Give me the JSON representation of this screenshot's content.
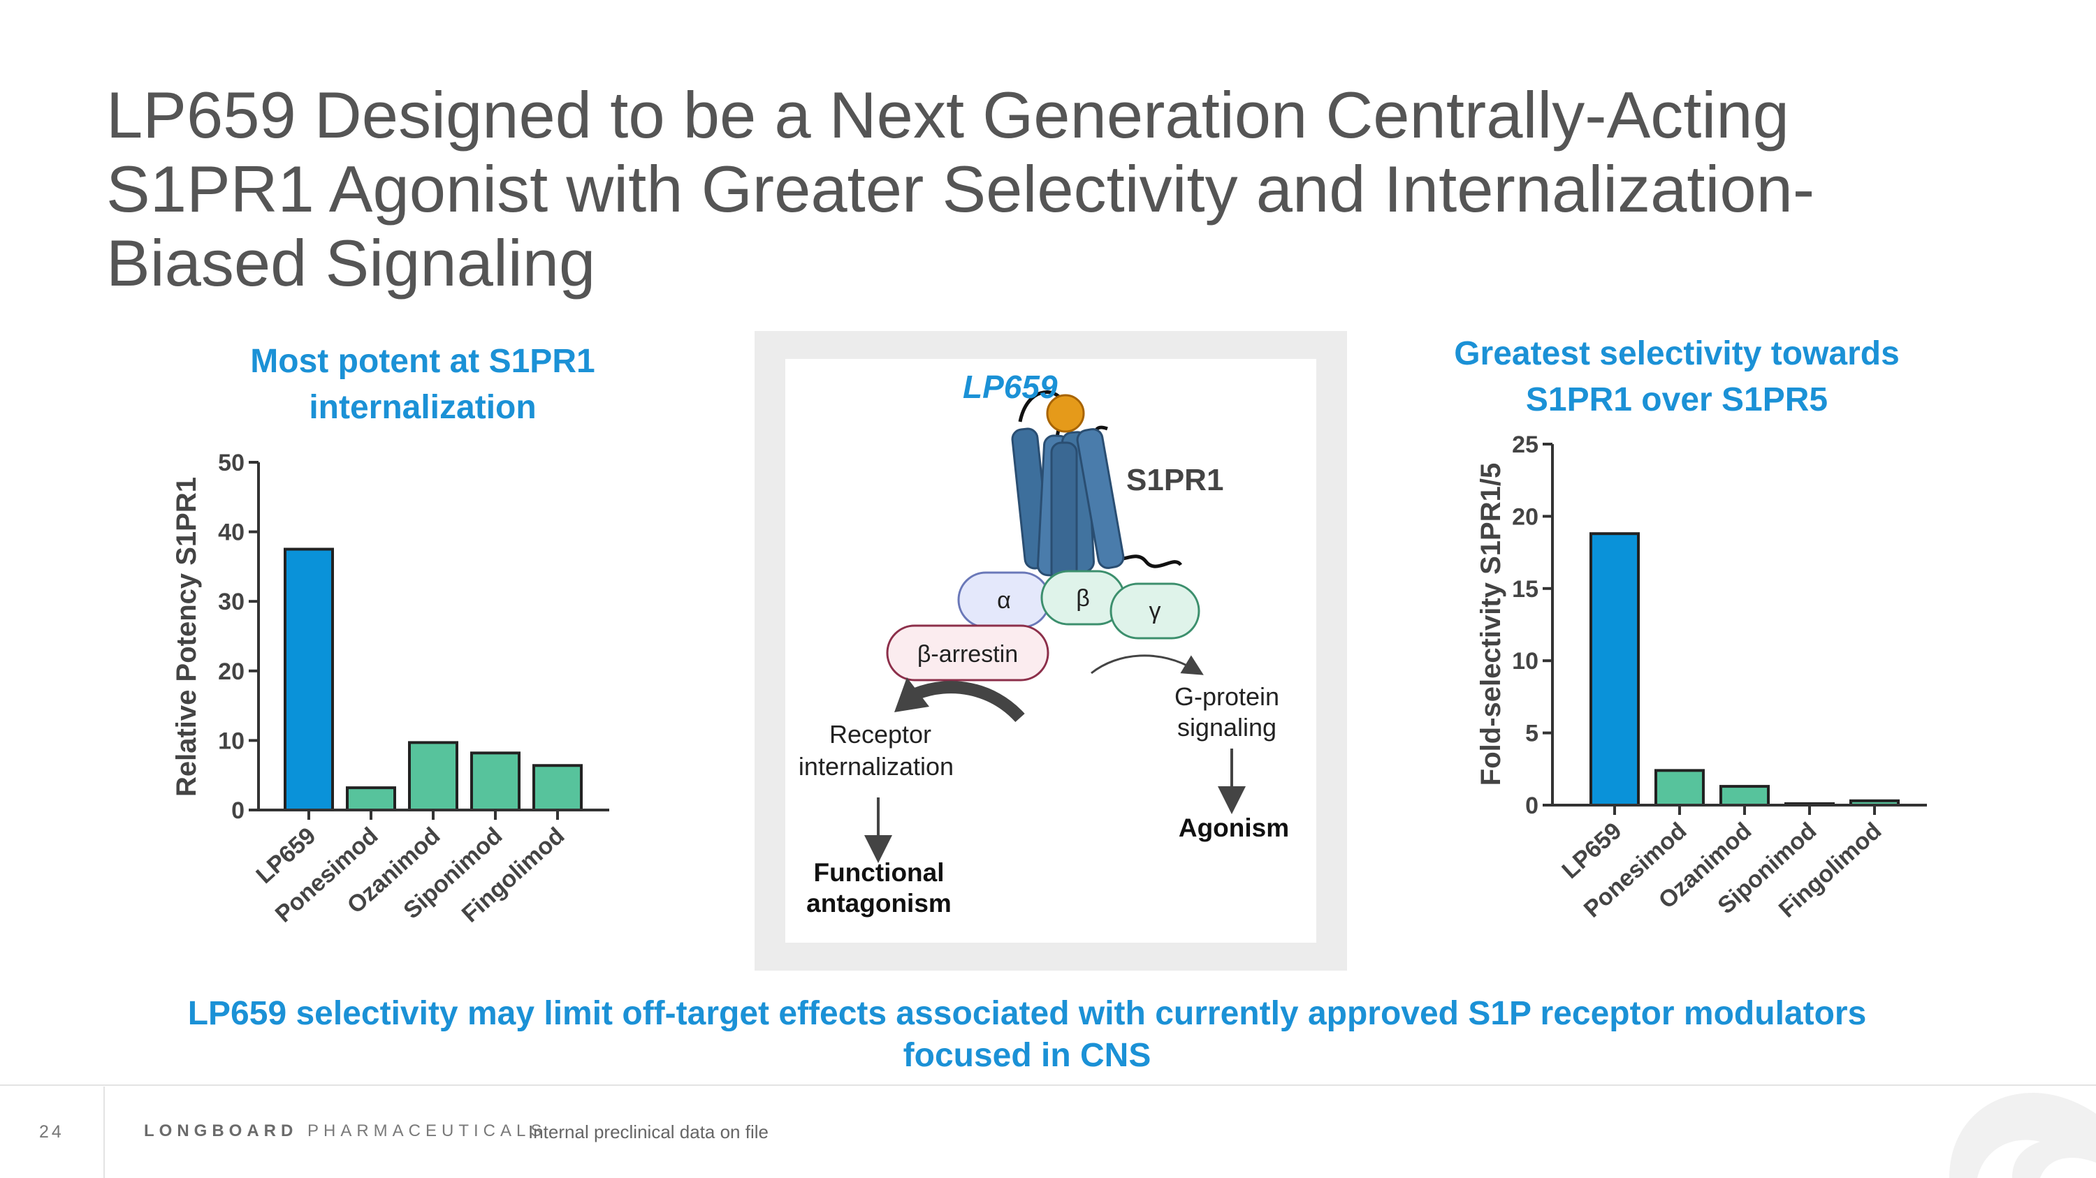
{
  "slide": {
    "title_lines": [
      "LP659 Designed to be a Next Generation Centrally-Acting",
      "S1PR1 Agonist with Greater Selectivity and Internalization-",
      "Biased Signaling"
    ],
    "bottom_message_lines": [
      "LP659 selectivity may limit off-target effects associated with currently approved S1P receptor modulators",
      "focused in CNS"
    ],
    "page_number": "24",
    "brand_bold": "LONGBOARD",
    "brand_rest": " PHARMACEUTICALS",
    "footnote": "Internal preclinical data on file"
  },
  "colors": {
    "lp659_bar": "#0a92d9",
    "other_bars": "#57c39c",
    "heading": "#1b91d6",
    "axis": "#333333"
  },
  "chart_data": [
    {
      "type": "bar",
      "heading_lines": [
        "Most potent at S1PR1",
        "internalization"
      ],
      "categories": [
        "LP659",
        "Ponesimod",
        "Ozanimod",
        "Siponimod",
        "Fingolimod"
      ],
      "values": [
        37.5,
        3.2,
        9.7,
        8.2,
        6.4
      ],
      "ylabel": "Relative Potency S1PR1",
      "xlabel": "",
      "ylim": [
        0,
        50
      ],
      "yticks": [
        "0",
        "10",
        "20",
        "30",
        "40",
        "50"
      ]
    },
    {
      "type": "bar",
      "heading_lines": [
        "Greatest selectivity towards",
        "S1PR1 over S1PR5"
      ],
      "categories": [
        "LP659",
        "Ponesimod",
        "Ozanimod",
        "Siponimod",
        "Fingolimod"
      ],
      "values": [
        18.8,
        2.4,
        1.3,
        0.1,
        0.3
      ],
      "ylabel": "Fold-selectivity S1PR1/5",
      "xlabel": "",
      "ylim": [
        0,
        25
      ],
      "yticks": [
        "0",
        "5",
        "10",
        "15",
        "20",
        "25"
      ]
    }
  ],
  "diagram": {
    "drug_label": "LP659",
    "receptor_label": "S1PR1",
    "alpha": "α",
    "beta": "β",
    "gamma": "γ",
    "arrestin": "β-arrestin",
    "internalization_lines": [
      "Receptor",
      "internalization"
    ],
    "gprotein_lines": [
      "G-protein",
      "signaling"
    ],
    "functional_lines": [
      "Functional",
      "antagonism"
    ],
    "agonism": "Agonism"
  }
}
